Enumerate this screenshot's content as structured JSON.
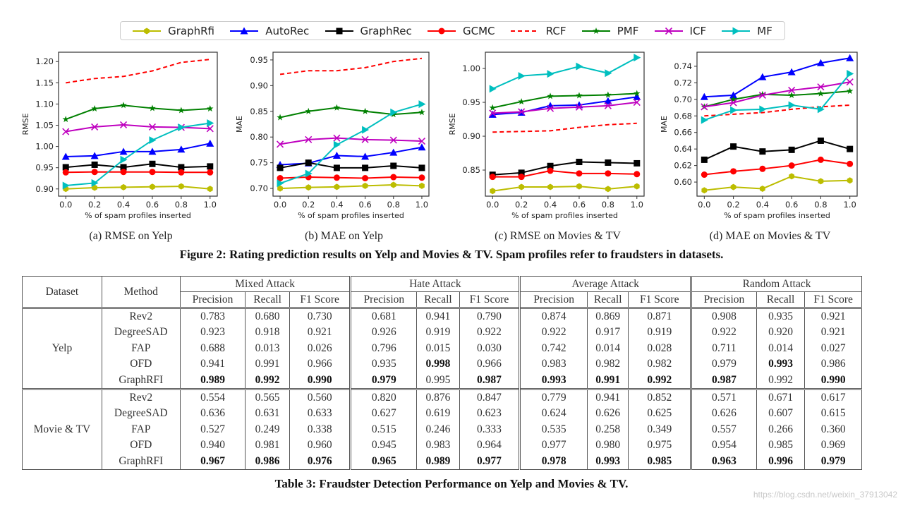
{
  "legend": [
    {
      "name": "GraphRfi",
      "color": "#bcbd00",
      "marker": "hexagon",
      "dash": false
    },
    {
      "name": "AutoRec",
      "color": "#0000ff",
      "marker": "triangle-up",
      "dash": false
    },
    {
      "name": "GraphRec",
      "color": "#000000",
      "marker": "square",
      "dash": false
    },
    {
      "name": "GCMC",
      "color": "#ff0000",
      "marker": "circle",
      "dash": false
    },
    {
      "name": "RCF",
      "color": "#ff0000",
      "marker": "none",
      "dash": true
    },
    {
      "name": "PMF",
      "color": "#008000",
      "marker": "star",
      "dash": false
    },
    {
      "name": "ICF",
      "color": "#bf00bf",
      "marker": "x",
      "dash": false
    },
    {
      "name": "MF",
      "color": "#00bfbf",
      "marker": "triangle-right",
      "dash": false
    }
  ],
  "chart_data": [
    {
      "type": "line",
      "caption": "(a) RMSE on Yelp",
      "xlabel": "% of spam profiles inserted",
      "ylabel": "RMSE",
      "x": [
        0.0,
        0.2,
        0.4,
        0.6,
        0.8,
        1.0
      ],
      "xticks": [
        "0.0",
        "0.2",
        "0.4",
        "0.6",
        "0.8",
        "1.0"
      ],
      "yticks": [
        "0.90",
        "0.95",
        "1.00",
        "1.05",
        "1.10",
        "1.15",
        "1.20"
      ],
      "ylim": [
        0.883,
        1.222
      ],
      "xlim": [
        -0.05,
        1.05
      ],
      "grid": false,
      "series": [
        {
          "name": "GraphRfi",
          "values": [
            0.9,
            0.903,
            0.904,
            0.905,
            0.906,
            0.9
          ]
        },
        {
          "name": "AutoRec",
          "values": [
            0.976,
            0.978,
            0.988,
            0.988,
            0.993,
            1.007
          ]
        },
        {
          "name": "GraphRec",
          "values": [
            0.951,
            0.957,
            0.951,
            0.959,
            0.951,
            0.953
          ]
        },
        {
          "name": "GCMC",
          "values": [
            0.939,
            0.94,
            0.94,
            0.94,
            0.939,
            0.939
          ]
        },
        {
          "name": "RCF",
          "values": [
            1.15,
            1.16,
            1.165,
            1.178,
            1.198,
            1.205
          ]
        },
        {
          "name": "PMF",
          "values": [
            1.064,
            1.089,
            1.097,
            1.09,
            1.085,
            1.089
          ]
        },
        {
          "name": "ICF",
          "values": [
            1.035,
            1.046,
            1.051,
            1.046,
            1.045,
            1.042
          ]
        },
        {
          "name": "MF",
          "values": [
            0.908,
            0.914,
            0.969,
            1.015,
            1.045,
            1.055
          ]
        }
      ]
    },
    {
      "type": "line",
      "caption": "(b) MAE on Yelp",
      "xlabel": "% of spam profiles inserted",
      "ylabel": "MAE",
      "x": [
        0.0,
        0.2,
        0.4,
        0.6,
        0.8,
        1.0
      ],
      "xticks": [
        "0.0",
        "0.2",
        "0.4",
        "0.6",
        "0.8",
        "1.0"
      ],
      "yticks": [
        "0.70",
        "0.75",
        "0.80",
        "0.85",
        "0.90",
        "0.95"
      ],
      "ylim": [
        0.685,
        0.965
      ],
      "xlim": [
        -0.05,
        1.05
      ],
      "grid": false,
      "series": [
        {
          "name": "GraphRfi",
          "values": [
            0.7,
            0.702,
            0.703,
            0.705,
            0.707,
            0.705
          ]
        },
        {
          "name": "AutoRec",
          "values": [
            0.746,
            0.749,
            0.764,
            0.762,
            0.77,
            0.78
          ]
        },
        {
          "name": "GraphRec",
          "values": [
            0.74,
            0.75,
            0.74,
            0.74,
            0.744,
            0.74
          ]
        },
        {
          "name": "GCMC",
          "values": [
            0.72,
            0.722,
            0.721,
            0.72,
            0.722,
            0.721
          ]
        },
        {
          "name": "RCF",
          "values": [
            0.922,
            0.929,
            0.929,
            0.935,
            0.947,
            0.953
          ]
        },
        {
          "name": "PMF",
          "values": [
            0.838,
            0.85,
            0.857,
            0.85,
            0.844,
            0.848
          ]
        },
        {
          "name": "ICF",
          "values": [
            0.786,
            0.795,
            0.798,
            0.795,
            0.794,
            0.792
          ]
        },
        {
          "name": "MF",
          "values": [
            0.71,
            0.729,
            0.785,
            0.814,
            0.848,
            0.864
          ]
        }
      ]
    },
    {
      "type": "line",
      "caption": "(c) RMSE on Movies & TV",
      "xlabel": "% of spam profiles inserted",
      "ylabel": "RMSE",
      "x": [
        0.0,
        0.2,
        0.4,
        0.6,
        0.8,
        1.0
      ],
      "xticks": [
        "0.0",
        "0.2",
        "0.4",
        "0.6",
        "0.8",
        "1.0"
      ],
      "yticks": [
        "0.85",
        "0.90",
        "0.95",
        "1.00"
      ],
      "ylim": [
        0.8115,
        1.024
      ],
      "xlim": [
        -0.05,
        1.05
      ],
      "grid": false,
      "series": [
        {
          "name": "GraphRfi",
          "values": [
            0.819,
            0.825,
            0.825,
            0.826,
            0.822,
            0.826
          ]
        },
        {
          "name": "AutoRec",
          "values": [
            0.932,
            0.935,
            0.945,
            0.946,
            0.952,
            0.958
          ]
        },
        {
          "name": "GraphRec",
          "values": [
            0.843,
            0.846,
            0.856,
            0.862,
            0.861,
            0.86
          ]
        },
        {
          "name": "GCMC",
          "values": [
            0.84,
            0.84,
            0.849,
            0.845,
            0.845,
            0.844
          ]
        },
        {
          "name": "RCF",
          "values": [
            0.906,
            0.907,
            0.908,
            0.913,
            0.917,
            0.919
          ]
        },
        {
          "name": "PMF",
          "values": [
            0.942,
            0.951,
            0.959,
            0.96,
            0.961,
            0.963
          ]
        },
        {
          "name": "ICF",
          "values": [
            0.934,
            0.936,
            0.941,
            0.943,
            0.945,
            0.95
          ]
        },
        {
          "name": "MF",
          "values": [
            0.97,
            0.989,
            0.992,
            1.003,
            0.993,
            1.016
          ]
        }
      ]
    },
    {
      "type": "line",
      "caption": "(d) MAE on Movies & TV",
      "xlabel": "% of spam profiles inserted",
      "ylabel": "MAE",
      "x": [
        0.0,
        0.2,
        0.4,
        0.6,
        0.8,
        1.0
      ],
      "xticks": [
        "0.0",
        "0.2",
        "0.4",
        "0.6",
        "0.8",
        "1.0"
      ],
      "yticks": [
        "0.60",
        "0.62",
        "0.64",
        "0.66",
        "0.68",
        "0.70",
        "0.72",
        "0.74"
      ],
      "ylim": [
        0.583,
        0.757
      ],
      "xlim": [
        -0.05,
        1.05
      ],
      "grid": false,
      "series": [
        {
          "name": "GraphRfi",
          "values": [
            0.59,
            0.594,
            0.592,
            0.607,
            0.601,
            0.602
          ]
        },
        {
          "name": "AutoRec",
          "values": [
            0.703,
            0.705,
            0.727,
            0.733,
            0.744,
            0.75
          ]
        },
        {
          "name": "GraphRec",
          "values": [
            0.627,
            0.643,
            0.637,
            0.639,
            0.65,
            0.64
          ]
        },
        {
          "name": "GCMC",
          "values": [
            0.609,
            0.613,
            0.616,
            0.62,
            0.627,
            0.622
          ]
        },
        {
          "name": "RCF",
          "values": [
            0.68,
            0.682,
            0.684,
            0.688,
            0.691,
            0.693
          ]
        },
        {
          "name": "PMF",
          "values": [
            0.691,
            0.7,
            0.706,
            0.705,
            0.707,
            0.71
          ]
        },
        {
          "name": "ICF",
          "values": [
            0.691,
            0.696,
            0.705,
            0.711,
            0.715,
            0.721
          ]
        },
        {
          "name": "MF",
          "values": [
            0.675,
            0.687,
            0.688,
            0.693,
            0.688,
            0.731
          ]
        }
      ]
    }
  ],
  "figure_caption": "Figure 2: Rating prediction results on Yelp and Movies & TV. Spam profiles refer to fraudsters in datasets.",
  "table": {
    "header_dataset": "Dataset",
    "header_method": "Method",
    "groups": [
      "Mixed Attack",
      "Hate Attack",
      "Average Attack",
      "Random Attack"
    ],
    "subheaders": [
      "Precision",
      "Recall",
      "F1 Score"
    ],
    "datasets": [
      {
        "name": "Yelp",
        "rows": [
          {
            "method": "Rev2",
            "values": [
              "0.783",
              "0.680",
              "0.730",
              "0.681",
              "0.941",
              "0.790",
              "0.874",
              "0.869",
              "0.871",
              "0.908",
              "0.935",
              "0.921"
            ],
            "bold": []
          },
          {
            "method": "DegreeSAD",
            "values": [
              "0.923",
              "0.918",
              "0.921",
              "0.926",
              "0.919",
              "0.922",
              "0.922",
              "0.917",
              "0.919",
              "0.922",
              "0.920",
              "0.921"
            ],
            "bold": []
          },
          {
            "method": "FAP",
            "values": [
              "0.688",
              "0.013",
              "0.026",
              "0.796",
              "0.015",
              "0.030",
              "0.742",
              "0.014",
              "0.028",
              "0.711",
              "0.014",
              "0.027"
            ],
            "bold": []
          },
          {
            "method": "OFD",
            "values": [
              "0.941",
              "0.991",
              "0.966",
              "0.935",
              "0.998",
              "0.966",
              "0.983",
              "0.982",
              "0.982",
              "0.979",
              "0.993",
              "0.986"
            ],
            "bold": [
              4,
              10
            ]
          },
          {
            "method": "GraphRFI",
            "values": [
              "0.989",
              "0.992",
              "0.990",
              "0.979",
              "0.995",
              "0.987",
              "0.993",
              "0.991",
              "0.992",
              "0.987",
              "0.992",
              "0.990"
            ],
            "bold": [
              0,
              1,
              2,
              3,
              5,
              6,
              7,
              8,
              9,
              11
            ]
          }
        ]
      },
      {
        "name": "Movie & TV",
        "rows": [
          {
            "method": "Rev2",
            "values": [
              "0.554",
              "0.565",
              "0.560",
              "0.820",
              "0.876",
              "0.847",
              "0.779",
              "0.941",
              "0.852",
              "0.571",
              "0.671",
              "0.617"
            ],
            "bold": []
          },
          {
            "method": "DegreeSAD",
            "values": [
              "0.636",
              "0.631",
              "0.633",
              "0.627",
              "0.619",
              "0.623",
              "0.624",
              "0.626",
              "0.625",
              "0.626",
              "0.607",
              "0.615"
            ],
            "bold": []
          },
          {
            "method": "FAP",
            "values": [
              "0.527",
              "0.249",
              "0.338",
              "0.515",
              "0.246",
              "0.333",
              "0.535",
              "0.258",
              "0.349",
              "0.557",
              "0.266",
              "0.360"
            ],
            "bold": []
          },
          {
            "method": "OFD",
            "values": [
              "0.940",
              "0.981",
              "0.960",
              "0.945",
              "0.983",
              "0.964",
              "0.977",
              "0.980",
              "0.975",
              "0.954",
              "0.985",
              "0.969"
            ],
            "bold": []
          },
          {
            "method": "GraphRFI",
            "values": [
              "0.967",
              "0.986",
              "0.976",
              "0.965",
              "0.989",
              "0.977",
              "0.978",
              "0.993",
              "0.985",
              "0.963",
              "0.996",
              "0.979"
            ],
            "bold": [
              0,
              1,
              2,
              3,
              4,
              5,
              6,
              7,
              8,
              9,
              10,
              11
            ]
          }
        ]
      }
    ]
  },
  "table_caption": "Table 3: Fraudster Detection Performance on Yelp and Movies & TV.",
  "watermark": "https://blog.csdn.net/weixin_37913042"
}
